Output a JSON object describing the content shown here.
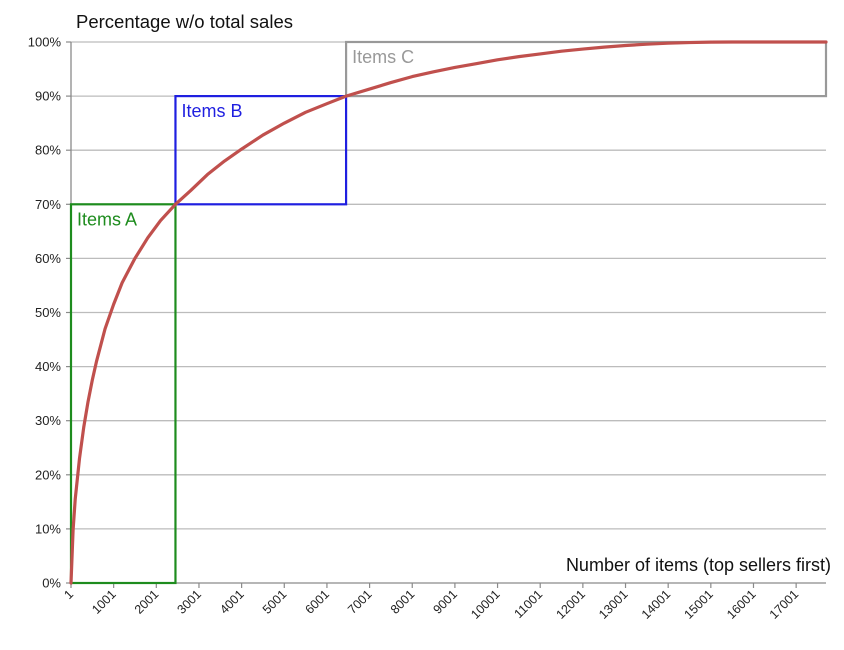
{
  "chart_data": {
    "type": "line",
    "title": "Percentage w/o total sales",
    "xlabel": "Number of items (top sellers first)",
    "ylabel": "",
    "x_tick_labels": [
      "1",
      "1001",
      "2001",
      "3001",
      "4001",
      "5001",
      "6001",
      "7001",
      "8001",
      "9001",
      "10001",
      "11001",
      "12001",
      "13001",
      "14001",
      "15001",
      "16001",
      "17001"
    ],
    "y_tick_labels": [
      "0%",
      "10%",
      "20%",
      "30%",
      "40%",
      "50%",
      "60%",
      "70%",
      "80%",
      "90%",
      "100%"
    ],
    "xlim": [
      1,
      17701
    ],
    "ylim": [
      0,
      100
    ],
    "grid": "horizontal",
    "series": [
      {
        "name": "",
        "color": "#c0504d",
        "x": [
          1,
          50,
          100,
          200,
          300,
          400,
          500,
          600,
          800,
          1000,
          1200,
          1500,
          1800,
          2100,
          2450,
          2800,
          3200,
          3600,
          4000,
          4500,
          5000,
          5500,
          6000,
          6450,
          7000,
          7500,
          8000,
          8500,
          9000,
          9500,
          10000,
          10500,
          11000,
          11500,
          12000,
          12500,
          13000,
          13500,
          14000,
          14500,
          15000,
          15500,
          16000,
          16500,
          17000,
          17701
        ],
        "y": [
          0,
          9.8,
          15.5,
          23,
          28.8,
          33.5,
          37.5,
          41,
          47,
          51.5,
          55.5,
          60,
          63.8,
          67,
          70,
          72.5,
          75.5,
          78,
          80.2,
          82.8,
          85,
          87,
          88.6,
          90,
          91.3,
          92.5,
          93.6,
          94.5,
          95.3,
          96,
          96.7,
          97.3,
          97.8,
          98.3,
          98.7,
          99.05,
          99.35,
          99.6,
          99.78,
          99.9,
          99.97,
          100,
          100,
          100,
          100,
          100
        ]
      }
    ],
    "annotations": [
      {
        "label": "Items A",
        "color": "#1e8c1e",
        "x_range": [
          1,
          2450
        ],
        "y_range": [
          0,
          70
        ]
      },
      {
        "label": "Items B",
        "color": "#1f1fe0",
        "x_range": [
          2450,
          6450
        ],
        "y_range": [
          70,
          90
        ]
      },
      {
        "label": "Items C",
        "color": "#999999",
        "x_range": [
          6450,
          17701
        ],
        "y_range": [
          90,
          100
        ]
      }
    ]
  }
}
